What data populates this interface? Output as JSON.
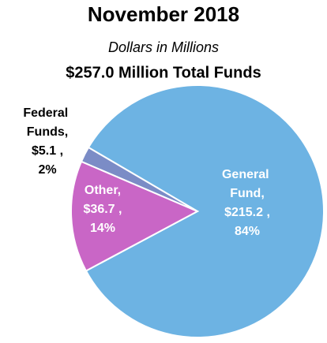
{
  "chart_data": {
    "type": "pie",
    "title": "November 2018",
    "subtitle": "Dollars in Millions",
    "total_label": "$257.0 Million Total Funds",
    "categories": [
      "General Fund,",
      "Other,",
      "Federal Funds,"
    ],
    "values": [
      215.2,
      36.7,
      5.1
    ],
    "value_labels": [
      "$215.2 ,",
      "$36.7 ,",
      "$5.1 ,"
    ],
    "percents": [
      84,
      14,
      2
    ],
    "percent_labels": [
      "84%",
      "14%",
      "2%"
    ],
    "colors": [
      "#6db3e3",
      "#c966c6",
      "#7b8cc6"
    ]
  }
}
